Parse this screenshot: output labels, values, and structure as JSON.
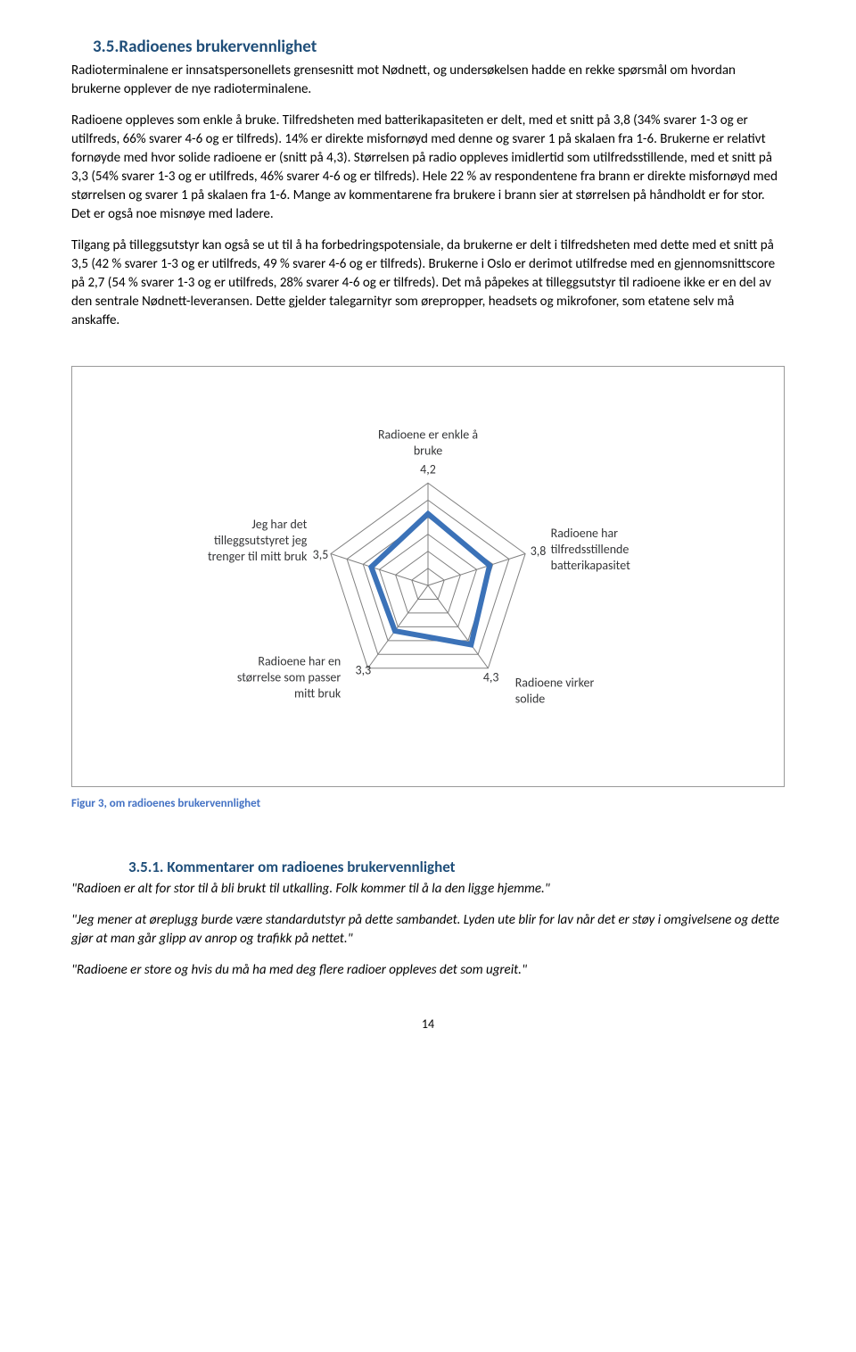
{
  "heading": "3.5.Radioenes brukervennlighet",
  "para1": "Radioterminalene er innsatspersonellets grensesnitt mot Nødnett, og undersøkelsen hadde en rekke spørsmål om hvordan brukerne opplever de nye radioterminalene.",
  "para2": "Radioene oppleves som enkle å bruke. Tilfredsheten med batterikapasiteten er delt, med et snitt på 3,8 (34% svarer 1-3 og er utilfreds, 66% svarer 4-6 og er tilfreds). 14% er direkte misfornøyd med denne og svarer 1 på skalaen fra 1-6. Brukerne er relativt fornøyde med hvor solide radioene er (snitt på 4,3). Størrelsen på radio oppleves imidlertid som utilfredsstillende, med et snitt på 3,3 (54% svarer 1-3 og er utilfreds, 46% svarer 4-6 og er tilfreds). Hele 22 % av respondentene fra brann er direkte misfornøyd med størrelsen og svarer 1 på skalaen fra 1-6. Mange av kommentarene fra brukere i brann sier at størrelsen på håndholdt er for stor. Det er også noe misnøye med ladere.",
  "para3": "Tilgang på tilleggsutstyr kan også se ut til å ha forbedringspotensiale, da brukerne er delt i tilfredsheten med dette med et snitt på 3,5 (42 % svarer 1-3 og er utilfreds, 49 % svarer 4-6 og er tilfreds). Brukerne i Oslo er derimot utilfredse med en gjennomsnittscore på 2,7 (54 % svarer 1-3 og er utilfreds, 28% svarer 4-6 og er tilfreds). Det må påpekes at tilleggsutstyr til radioene ikke er en del av den sentrale Nødnett-leveransen. Dette gjelder talegarnityr som ørepropper, headsets og mikrofoner, som etatene selv må anskaffe.",
  "radar": {
    "axes": [
      {
        "label": "Radioene er enkle å bruke",
        "value": 4.2,
        "valueText": "4,2"
      },
      {
        "label": "Radioene har tilfredsstillende batterikapasitet",
        "value": 3.8,
        "valueText": "3,8"
      },
      {
        "label": "Radioene virker solide",
        "value": 4.3,
        "valueText": "4,3"
      },
      {
        "label": "Radioene har en størrelse som passer mitt bruk",
        "value": 3.3,
        "valueText": "3,3"
      },
      {
        "label": "Jeg har det tilleggsutstyret jeg trenger til mitt bruk",
        "value": 3.5,
        "valueText": "3,5"
      }
    ],
    "max": 6,
    "gridLevels": [
      1,
      2,
      3,
      4,
      5,
      6
    ],
    "gridColor": "#808080",
    "dataColor": "#3b72b8",
    "dataWidth": 6,
    "labelColor": "#353638",
    "labelFontSize": 14
  },
  "figureCaption": "Figur 3, om radioenes brukervennlighet",
  "subheading": "3.5.1.  Kommentarer om radioenes brukervennlighet",
  "quote1": "\"Radioen er alt for stor til å bli brukt til utkalling. Folk kommer til å la den ligge hjemme.\"",
  "quote2": "\"Jeg mener at øreplugg burde være standardutstyr på dette sambandet. Lyden ute blir for lav når det er støy i omgivelsene og dette gjør at man går glipp av anrop og trafikk på nettet.\"",
  "quote3": "\"Radioene er store og hvis du må ha med deg flere radioer oppleves det som ugreit.\"",
  "pageNum": "14"
}
